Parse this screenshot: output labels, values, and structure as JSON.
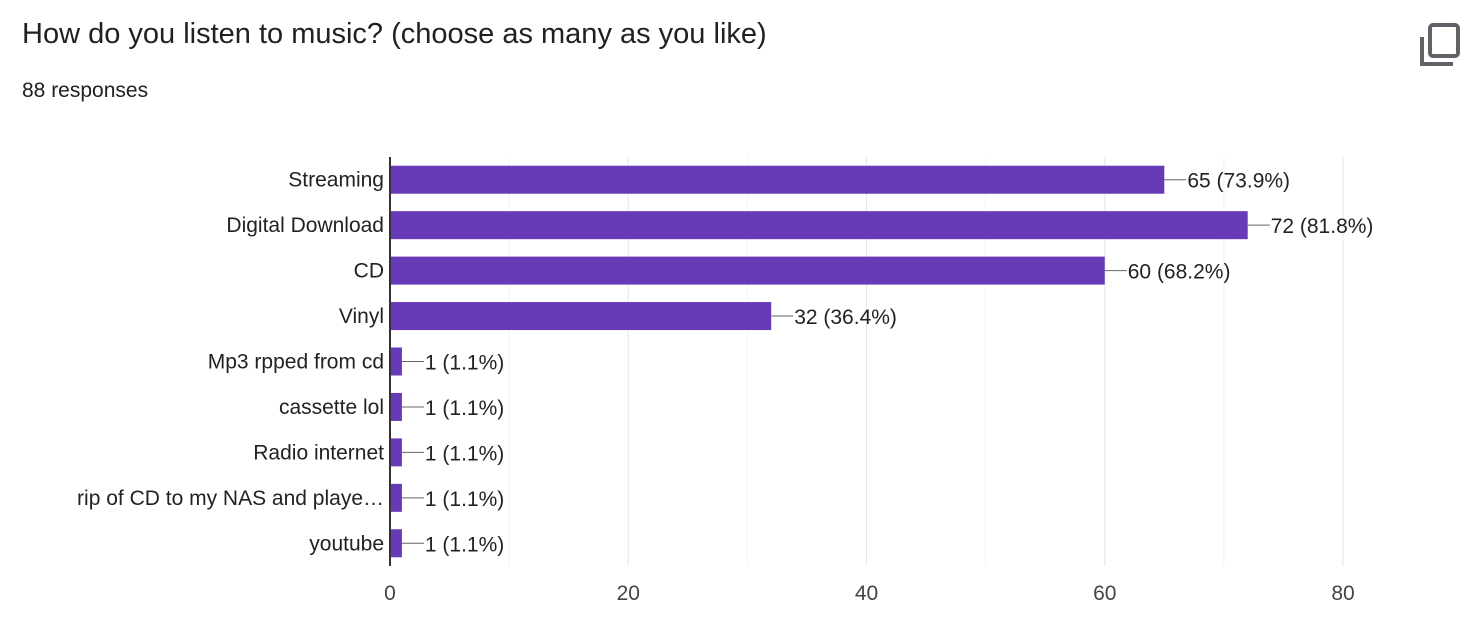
{
  "header": {
    "title": "How do you listen to music? (choose as many as you like)",
    "responses": "88 responses",
    "copy_icon": "copy-icon"
  },
  "chart_data": {
    "type": "bar",
    "orientation": "horizontal",
    "title": "How do you listen to music? (choose as many as you like)",
    "categories": [
      "Streaming",
      "Digital Download",
      "CD",
      "Vinyl",
      "Mp3 rpped from cd",
      "cassette lol",
      "Radio internet",
      "rip of CD to my NAS and playe…",
      "youtube"
    ],
    "values": [
      65,
      72,
      60,
      32,
      1,
      1,
      1,
      1,
      1
    ],
    "labels": [
      "65 (73.9%)",
      "72 (81.8%)",
      "60 (68.2%)",
      "32 (36.4%)",
      "1 (1.1%)",
      "1 (1.1%)",
      "1 (1.1%)",
      "1 (1.1%)",
      "1 (1.1%)"
    ],
    "xlim": [
      0,
      80
    ],
    "xticks": [
      0,
      20,
      40,
      60,
      80
    ],
    "grid": true,
    "bar_color": "#673ab7",
    "xlabel": "",
    "ylabel": ""
  }
}
